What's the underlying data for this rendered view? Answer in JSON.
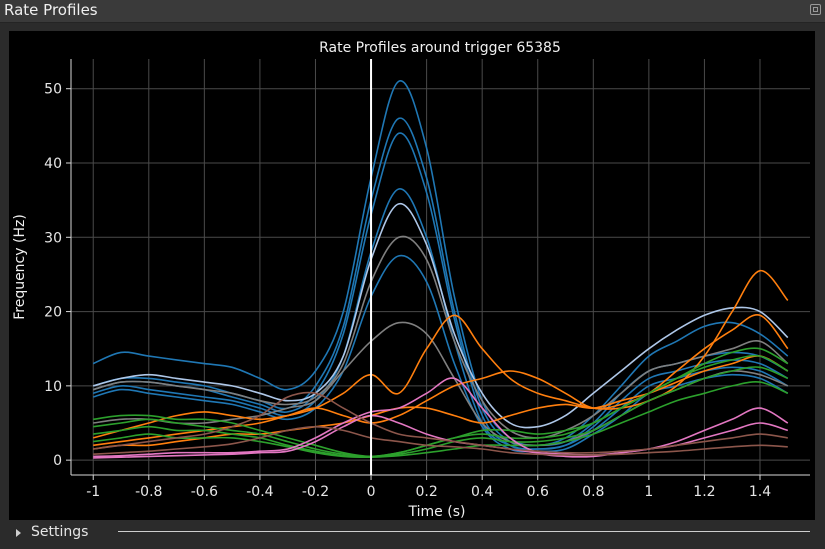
{
  "window": {
    "title": "Rate Profiles"
  },
  "settings": {
    "label": "Settings"
  },
  "chart_data": {
    "type": "line",
    "title": "Rate Profiles around trigger 65385",
    "xlabel": "Time (s)",
    "ylabel": "Frequency (Hz)",
    "xlim": [
      -1.08,
      1.58
    ],
    "ylim": [
      -2,
      54
    ],
    "xticks": [
      -1,
      -0.8,
      -0.6,
      -0.4,
      -0.2,
      0,
      0.2,
      0.4,
      0.6,
      0.8,
      1,
      1.2,
      1.4
    ],
    "xtick_labels": [
      "-1",
      "-0.8",
      "-0.6",
      "-0.4",
      "-0.2",
      "0",
      "0.2",
      "0.4",
      "0.6",
      "0.8",
      "1",
      "1.2",
      "1.4"
    ],
    "yticks": [
      0,
      10,
      20,
      30,
      40,
      50
    ],
    "ytick_labels": [
      "0",
      "10",
      "20",
      "30",
      "40",
      "50"
    ],
    "grid": true,
    "trigger_line_x": 0,
    "x": [
      -1,
      -0.9,
      -0.8,
      -0.7,
      -0.6,
      -0.5,
      -0.4,
      -0.3,
      -0.2,
      -0.1,
      0,
      0.1,
      0.2,
      0.3,
      0.4,
      0.5,
      0.6,
      0.7,
      0.8,
      0.9,
      1,
      1.1,
      1.2,
      1.3,
      1.4,
      1.5
    ],
    "series": [
      {
        "color": "#1f77b4",
        "values": [
          13,
          14.5,
          14,
          13.5,
          13,
          12.5,
          11,
          9.5,
          12,
          20,
          38,
          51,
          42,
          22,
          8,
          3,
          2,
          3,
          6,
          10,
          14,
          16,
          18,
          18.5,
          17,
          14
        ]
      },
      {
        "color": "#1f77b4",
        "values": [
          10,
          11,
          11,
          10.5,
          10,
          9,
          8,
          7,
          10,
          18,
          35,
          46,
          38,
          20,
          7,
          2.5,
          2,
          2.5,
          5,
          9,
          12,
          13,
          14,
          14.5,
          14,
          12
        ]
      },
      {
        "color": "#1f77b4",
        "values": [
          9.5,
          10.5,
          10.5,
          10,
          9.5,
          8.5,
          7.5,
          6.5,
          9,
          17,
          33,
          44,
          36,
          19,
          6,
          2,
          1.5,
          2,
          4.5,
          8,
          11,
          12,
          13,
          13.5,
          13,
          11
        ]
      },
      {
        "color": "#1f77b4",
        "values": [
          9,
          10,
          9.5,
          9,
          8.5,
          8,
          7,
          6,
          8,
          14,
          28,
          36.5,
          30,
          16,
          5,
          2,
          1.5,
          2,
          4,
          7,
          10,
          11,
          12,
          12.5,
          12,
          10
        ]
      },
      {
        "color": "#1f77b4",
        "values": [
          8.5,
          9.5,
          9,
          8.5,
          8,
          7.5,
          6.5,
          5.5,
          7,
          12,
          22,
          27.5,
          24,
          13,
          4.5,
          1.5,
          1.2,
          1.5,
          3.5,
          6,
          9,
          10,
          11,
          11.5,
          11,
          9
        ]
      },
      {
        "color": "#aec7e8",
        "values": [
          10,
          11,
          11.5,
          11,
          10.5,
          10,
          9,
          8,
          9,
          14,
          27,
          34.5,
          29,
          17,
          9,
          5,
          4.5,
          6,
          9,
          12,
          15,
          17.5,
          19.5,
          20.5,
          20,
          16.5
        ]
      },
      {
        "color": "#7f7f7f",
        "values": [
          9.5,
          10.5,
          10.5,
          10,
          9.5,
          9,
          8,
          7.5,
          8.5,
          13,
          24,
          30,
          27,
          16,
          8,
          4,
          3,
          4,
          6,
          9,
          12,
          13,
          14,
          15,
          16,
          13
        ]
      },
      {
        "color": "#7f7f7f",
        "values": [
          5,
          5.5,
          5.5,
          5,
          5,
          5.5,
          6,
          7,
          8,
          12,
          16,
          18.5,
          17,
          11,
          5,
          2.5,
          2,
          2.5,
          4,
          6,
          8,
          9.5,
          11,
          12,
          11.5,
          10
        ]
      },
      {
        "color": "#ff7f0e",
        "values": [
          3,
          4,
          5,
          6,
          6.5,
          6,
          5.5,
          6,
          7,
          9,
          11.5,
          9,
          15,
          19.5,
          15,
          11,
          9,
          8,
          7,
          7,
          8,
          10,
          14,
          20,
          25.5,
          21.5
        ]
      },
      {
        "color": "#ff7f0e",
        "values": [
          2,
          2.5,
          3,
          3.5,
          4,
          4.5,
          5,
          6,
          7,
          6,
          5,
          6,
          8,
          10,
          11,
          12,
          11,
          9,
          7,
          7.5,
          9,
          12,
          15,
          17.5,
          19.5,
          15
        ]
      },
      {
        "color": "#ff7f0e",
        "values": [
          1.5,
          2,
          2,
          2.5,
          3,
          3.5,
          3.5,
          4,
          4.5,
          5,
          6,
          7,
          7,
          6,
          5,
          6,
          7,
          7.5,
          7,
          8,
          9,
          10.5,
          12,
          13,
          14,
          12
        ]
      },
      {
        "color": "#2ca02c",
        "values": [
          5.5,
          6,
          6,
          5.5,
          5.5,
          5,
          4,
          3,
          2,
          1,
          0.5,
          1,
          2,
          3,
          4,
          4,
          3.5,
          4,
          5,
          7,
          9,
          11,
          13,
          14.5,
          15,
          13
        ]
      },
      {
        "color": "#2ca02c",
        "values": [
          4.5,
          5,
          5.5,
          5,
          4.5,
          4,
          3.5,
          2.5,
          1.5,
          0.8,
          0.5,
          1,
          2,
          3,
          3.5,
          3,
          3,
          3.5,
          5,
          7,
          9,
          11,
          12.5,
          13.5,
          14,
          12
        ]
      },
      {
        "color": "#2ca02c",
        "values": [
          3.5,
          4,
          4.5,
          4,
          4,
          3.5,
          3,
          2,
          1.2,
          0.6,
          0.5,
          0.8,
          1.5,
          2.5,
          3,
          2.5,
          2.5,
          3,
          4,
          6,
          8,
          9.5,
          11,
          12,
          12.5,
          11
        ]
      },
      {
        "color": "#2ca02c",
        "values": [
          2.5,
          3,
          3.5,
          3,
          3,
          3,
          2.5,
          1.8,
          1,
          0.5,
          0.4,
          0.6,
          1,
          1.5,
          2,
          2,
          2,
          2.5,
          3.5,
          5,
          6.5,
          8,
          9,
          10,
          10.5,
          9
        ]
      },
      {
        "color": "#e377c2",
        "values": [
          0.5,
          0.6,
          0.8,
          1,
          1,
          1,
          1.2,
          1.5,
          3,
          5,
          6.5,
          7,
          9,
          11,
          7,
          3,
          1,
          0.5,
          0.5,
          1,
          1.5,
          2.5,
          4,
          5.5,
          7,
          5
        ]
      },
      {
        "color": "#e377c2",
        "values": [
          0.3,
          0.4,
          0.5,
          0.6,
          0.7,
          0.8,
          1,
          1.2,
          2.5,
          4.5,
          6,
          5,
          3.5,
          2.5,
          2,
          1.5,
          1,
          0.8,
          0.7,
          1,
          1.5,
          2,
          3,
          4,
          5,
          4
        ]
      },
      {
        "color": "#8c564b",
        "values": [
          1.5,
          2,
          2.5,
          3,
          3.5,
          4.5,
          6,
          8.5,
          9,
          7,
          5,
          3.5,
          3,
          2.5,
          2,
          1.5,
          1.2,
          1,
          1,
          1.2,
          1.5,
          2,
          2.5,
          3,
          3.5,
          3
        ]
      },
      {
        "color": "#8c564b",
        "values": [
          0.8,
          1,
          1.2,
          1.5,
          1.8,
          2.2,
          3,
          4,
          4.5,
          4,
          3,
          2.5,
          2,
          1.8,
          1.5,
          1,
          0.8,
          0.7,
          0.7,
          0.8,
          1,
          1.2,
          1.5,
          1.8,
          2,
          1.8
        ]
      }
    ]
  }
}
